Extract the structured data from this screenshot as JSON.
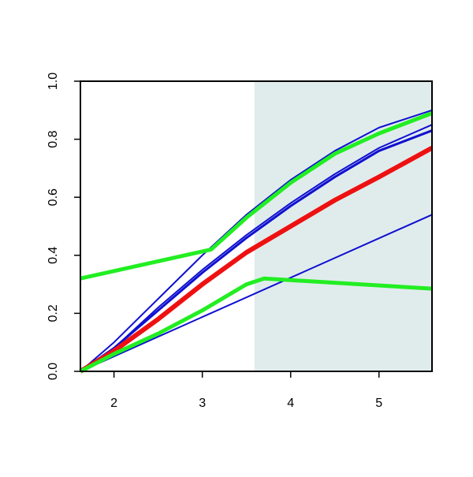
{
  "chart_data": {
    "type": "line",
    "xlim": [
      1.62,
      5.6
    ],
    "ylim": [
      0,
      1
    ],
    "xticks": [
      2,
      3,
      4,
      5
    ],
    "yticks": [
      {
        "value": 0,
        "label": "0.0"
      },
      {
        "value": 0.2,
        "label": "0.2"
      },
      {
        "value": 0.4,
        "label": "0.4"
      },
      {
        "value": 0.6,
        "label": "0.6"
      },
      {
        "value": 0.8,
        "label": "0.8"
      },
      {
        "value": 1,
        "label": "1.0"
      }
    ],
    "shaded_region": {
      "x": [
        3.59,
        5.6
      ],
      "color": "#e0ecec"
    },
    "series": [
      {
        "color": "#1010d0",
        "line_width": 2,
        "x": [
          1.62,
          2,
          2.5,
          3,
          3.5,
          4,
          4.5,
          5,
          5.6
        ],
        "values": [
          0,
          0.1,
          0.25,
          0.4,
          0.54,
          0.66,
          0.76,
          0.84,
          0.9
        ]
      },
      {
        "color": "#1010d0",
        "line_width": 2,
        "x": [
          1.62,
          2,
          2.5,
          3,
          3.5,
          4,
          4.5,
          5,
          5.6
        ],
        "values": [
          0,
          0.08,
          0.22,
          0.35,
          0.47,
          0.58,
          0.68,
          0.77,
          0.85
        ]
      },
      {
        "color": "#1010d0",
        "line_width": 3,
        "x": [
          1.62,
          2,
          2.5,
          3,
          3.5,
          4,
          4.5,
          5,
          5.6
        ],
        "values": [
          0,
          0.08,
          0.21,
          0.34,
          0.46,
          0.57,
          0.67,
          0.76,
          0.83
        ]
      },
      {
        "color": "#1010d0",
        "line_width": 2,
        "x": [
          1.62,
          5.6
        ],
        "values": [
          0,
          0.54
        ]
      },
      {
        "color": "#ee1111",
        "line_width": 6,
        "x": [
          1.62,
          2,
          2.5,
          3,
          3.5,
          4,
          4.5,
          5,
          5.6
        ],
        "values": [
          0,
          0.07,
          0.18,
          0.3,
          0.41,
          0.5,
          0.59,
          0.67,
          0.77
        ]
      },
      {
        "color": "#22ee22",
        "line_width": 5,
        "x": [
          1.62,
          3.1,
          3.5,
          4,
          4.5,
          5,
          5.6
        ],
        "values": [
          0.32,
          0.42,
          0.53,
          0.65,
          0.75,
          0.82,
          0.89
        ]
      },
      {
        "color": "#22ee22",
        "line_width": 5,
        "x": [
          1.62,
          2,
          2.5,
          3,
          3.5,
          3.7,
          5.6
        ],
        "values": [
          0,
          0.06,
          0.13,
          0.21,
          0.3,
          0.32,
          0.285
        ]
      }
    ]
  }
}
